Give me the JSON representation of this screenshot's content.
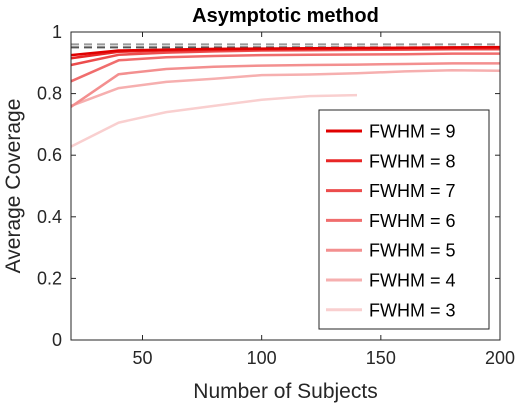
{
  "chart_data": {
    "type": "line",
    "title": "Asymptotic method",
    "xlabel": "Number of Subjects",
    "ylabel": "Average Coverage",
    "xlim": [
      20,
      200
    ],
    "ylim": [
      0,
      1
    ],
    "xticks": [
      50,
      100,
      150,
      200
    ],
    "yticks": [
      0,
      0.2,
      0.4,
      0.6,
      0.8,
      1
    ],
    "ytick_labels": [
      "0",
      "0.2",
      "0.4",
      "0.6",
      "0.8",
      "1"
    ],
    "grid": false,
    "legend_position": "bottom-right",
    "reference_lines": [
      {
        "y": 0.95,
        "style": "dashed",
        "color": "#555555"
      },
      {
        "y": 0.96,
        "style": "dashed",
        "color": "#999999"
      }
    ],
    "series": [
      {
        "name": "FWHM = 9",
        "color": "#e00000",
        "x": [
          20,
          40,
          60,
          80,
          100,
          120,
          140,
          160,
          180,
          200
        ],
        "values": [
          0.925,
          0.94,
          0.943,
          0.945,
          0.946,
          0.947,
          0.948,
          0.949,
          0.95,
          0.951
        ]
      },
      {
        "name": "FWHM = 8",
        "color": "#e82626",
        "x": [
          20,
          40,
          60,
          80,
          100,
          120,
          140,
          160,
          180,
          200
        ],
        "values": [
          0.915,
          0.936,
          0.94,
          0.942,
          0.944,
          0.945,
          0.946,
          0.947,
          0.948,
          0.948
        ]
      },
      {
        "name": "FWHM = 7",
        "color": "#ec4c4c",
        "x": [
          20,
          40,
          60,
          80,
          100,
          120,
          140,
          160,
          180,
          200
        ],
        "values": [
          0.893,
          0.926,
          0.933,
          0.937,
          0.94,
          0.941,
          0.942,
          0.943,
          0.944,
          0.944
        ]
      },
      {
        "name": "FWHM = 6",
        "color": "#f06d6d",
        "x": [
          20,
          40,
          60,
          80,
          100,
          120,
          140,
          160,
          180,
          200
        ],
        "values": [
          0.84,
          0.908,
          0.918,
          0.922,
          0.925,
          0.926,
          0.927,
          0.928,
          0.93,
          0.93
        ]
      },
      {
        "name": "FWHM = 5",
        "color": "#f38f8f",
        "x": [
          20,
          40,
          60,
          80,
          100,
          120,
          140,
          160,
          180,
          200
        ],
        "values": [
          0.757,
          0.863,
          0.88,
          0.887,
          0.891,
          0.893,
          0.894,
          0.896,
          0.898,
          0.898
        ]
      },
      {
        "name": "FWHM = 4",
        "color": "#f6afaf",
        "x": [
          20,
          40,
          60,
          80,
          100,
          120,
          140,
          160,
          180,
          200
        ],
        "values": [
          0.76,
          0.818,
          0.838,
          0.848,
          0.86,
          0.862,
          0.866,
          0.872,
          0.876,
          0.874
        ]
      },
      {
        "name": "FWHM = 3",
        "color": "#f9cfcf",
        "x": [
          20,
          40,
          60,
          80,
          100,
          120,
          140
        ],
        "values": [
          0.628,
          0.706,
          0.74,
          0.76,
          0.78,
          0.792,
          0.795
        ]
      }
    ]
  }
}
